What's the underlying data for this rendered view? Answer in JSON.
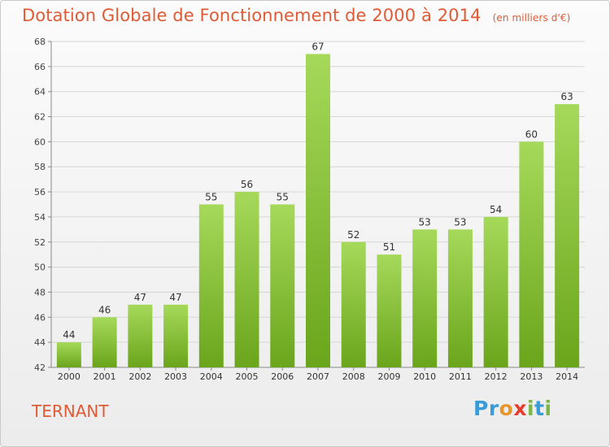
{
  "title": "Dotation Globale de Fonctionnement de 2000 à 2014",
  "unit_label": "(en milliers d'€)",
  "commune": "TERNANT",
  "logo": {
    "letters": [
      "P",
      "r",
      "o",
      "x",
      "i",
      "t",
      "i"
    ],
    "colors": [
      "#3a9bd6",
      "#3a9bd6",
      "#e8962a",
      "#e63c2e",
      "#7ab648",
      "#3a9bd6",
      "#7ab648"
    ]
  },
  "colors": {
    "bar_light": "#a6d95a",
    "bar_dark": "#6aa51c",
    "title": "#e05b35",
    "grid": "#d6d6d6"
  },
  "chart_data": {
    "type": "bar",
    "categories": [
      "2000",
      "2001",
      "2002",
      "2003",
      "2004",
      "2005",
      "2006",
      "2007",
      "2008",
      "2009",
      "2010",
      "2011",
      "2012",
      "2013",
      "2014"
    ],
    "values": [
      44,
      46,
      47,
      47,
      55,
      56,
      55,
      67,
      52,
      51,
      53,
      53,
      54,
      60,
      63
    ],
    "data_labels": [
      "44",
      "46",
      "47",
      "47",
      "55",
      "56",
      "55",
      "67",
      "52",
      "51",
      "53",
      "53",
      "54",
      "60",
      "63"
    ],
    "y_ticks": [
      "42",
      "44",
      "46",
      "48",
      "50",
      "52",
      "54",
      "56",
      "58",
      "60",
      "62",
      "64",
      "66",
      "68"
    ],
    "ylim": [
      42,
      68
    ],
    "grid": true
  }
}
